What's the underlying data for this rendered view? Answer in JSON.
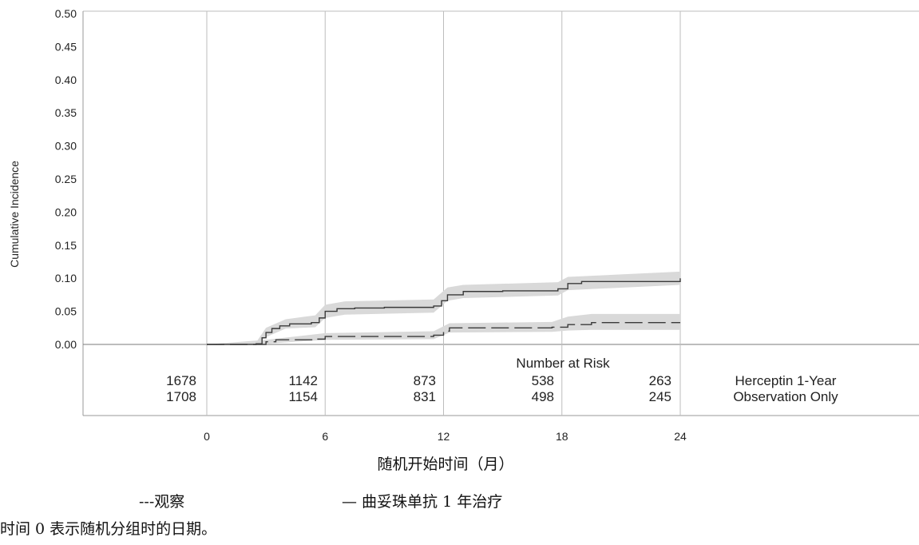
{
  "chart_data": {
    "type": "line",
    "ylabel": "Cumulative Incidence",
    "xlabel": "随机开始时间（月）",
    "ylim": [
      0,
      0.5
    ],
    "xlim": [
      0,
      24
    ],
    "x_ticks": [
      0,
      6,
      12,
      18,
      24
    ],
    "y_ticks": [
      "0.00",
      "0.05",
      "0.10",
      "0.15",
      "0.20",
      "0.25",
      "0.30",
      "0.35",
      "0.40",
      "0.45",
      "0.50"
    ],
    "grid": "vertical lines at x ticks",
    "series": [
      {
        "name": "Herceptin 1-Year",
        "style": "solid",
        "points": [
          [
            0,
            0
          ],
          [
            1,
            0
          ],
          [
            2.5,
            0.001
          ],
          [
            2.8,
            0.01
          ],
          [
            3,
            0.018
          ],
          [
            3.3,
            0.024
          ],
          [
            3.7,
            0.028
          ],
          [
            4.2,
            0.031
          ],
          [
            5.3,
            0.033
          ],
          [
            5.7,
            0.04
          ],
          [
            6,
            0.05
          ],
          [
            6.6,
            0.054
          ],
          [
            7.5,
            0.055
          ],
          [
            9,
            0.056
          ],
          [
            11.5,
            0.058
          ],
          [
            11.9,
            0.066
          ],
          [
            12.2,
            0.075
          ],
          [
            13,
            0.08
          ],
          [
            15,
            0.081
          ],
          [
            17.8,
            0.084
          ],
          [
            18.3,
            0.092
          ],
          [
            19,
            0.095
          ],
          [
            23.6,
            0.095
          ],
          [
            24,
            0.1
          ]
        ],
        "ci_upper": [
          [
            0,
            0
          ],
          [
            2.5,
            0.003
          ],
          [
            3,
            0.025
          ],
          [
            4,
            0.038
          ],
          [
            5.5,
            0.044
          ],
          [
            6,
            0.06
          ],
          [
            7,
            0.065
          ],
          [
            11.5,
            0.068
          ],
          [
            12.2,
            0.086
          ],
          [
            13,
            0.09
          ],
          [
            17.8,
            0.094
          ],
          [
            18.3,
            0.102
          ],
          [
            24,
            0.11
          ]
        ],
        "ci_lower": [
          [
            0,
            0
          ],
          [
            2.5,
            0
          ],
          [
            3,
            0.011
          ],
          [
            4,
            0.024
          ],
          [
            5.5,
            0.026
          ],
          [
            6,
            0.04
          ],
          [
            7,
            0.045
          ],
          [
            11.5,
            0.048
          ],
          [
            12.2,
            0.066
          ],
          [
            13,
            0.07
          ],
          [
            17.8,
            0.074
          ],
          [
            18.3,
            0.082
          ],
          [
            24,
            0.09
          ]
        ]
      },
      {
        "name": "Observation Only",
        "style": "dashed",
        "points": [
          [
            0,
            0
          ],
          [
            2.5,
            0
          ],
          [
            3,
            0.004
          ],
          [
            3.5,
            0.007
          ],
          [
            5.5,
            0.008
          ],
          [
            6,
            0.012
          ],
          [
            11.5,
            0.014
          ],
          [
            12,
            0.02
          ],
          [
            12.3,
            0.025
          ],
          [
            17.5,
            0.026
          ],
          [
            18.3,
            0.03
          ],
          [
            19.5,
            0.033
          ],
          [
            24,
            0.033
          ]
        ],
        "ci_upper": [
          [
            0,
            0
          ],
          [
            3,
            0.007
          ],
          [
            6,
            0.017
          ],
          [
            11.5,
            0.02
          ],
          [
            12.3,
            0.032
          ],
          [
            17.5,
            0.034
          ],
          [
            18.3,
            0.042
          ],
          [
            19.5,
            0.046
          ],
          [
            24,
            0.046
          ]
        ],
        "ci_lower": [
          [
            0,
            0
          ],
          [
            3,
            0.001
          ],
          [
            6,
            0.007
          ],
          [
            11.5,
            0.008
          ],
          [
            12.3,
            0.018
          ],
          [
            17.5,
            0.019
          ],
          [
            18.3,
            0.021
          ],
          [
            19.5,
            0.022
          ],
          [
            24,
            0.022
          ]
        ]
      }
    ],
    "risk_table": {
      "title": "Number at Risk",
      "rows": [
        {
          "label": "Herceptin 1-Year",
          "values": [
            "1678",
            "1142",
            "873",
            "538",
            "263"
          ]
        },
        {
          "label": "Observation Only",
          "values": [
            "1708",
            "1154",
            "831",
            "498",
            "245"
          ]
        }
      ]
    },
    "colors": {
      "line": "#3a3a3a",
      "band": "#d9d9d9",
      "grid": "#bdbdbd"
    }
  },
  "caption": {
    "legend_observation": "---观察",
    "legend_herceptin": "— 曲妥珠单抗 1 年治疗",
    "note": "时间 0 表示随机分组时的日期。"
  }
}
